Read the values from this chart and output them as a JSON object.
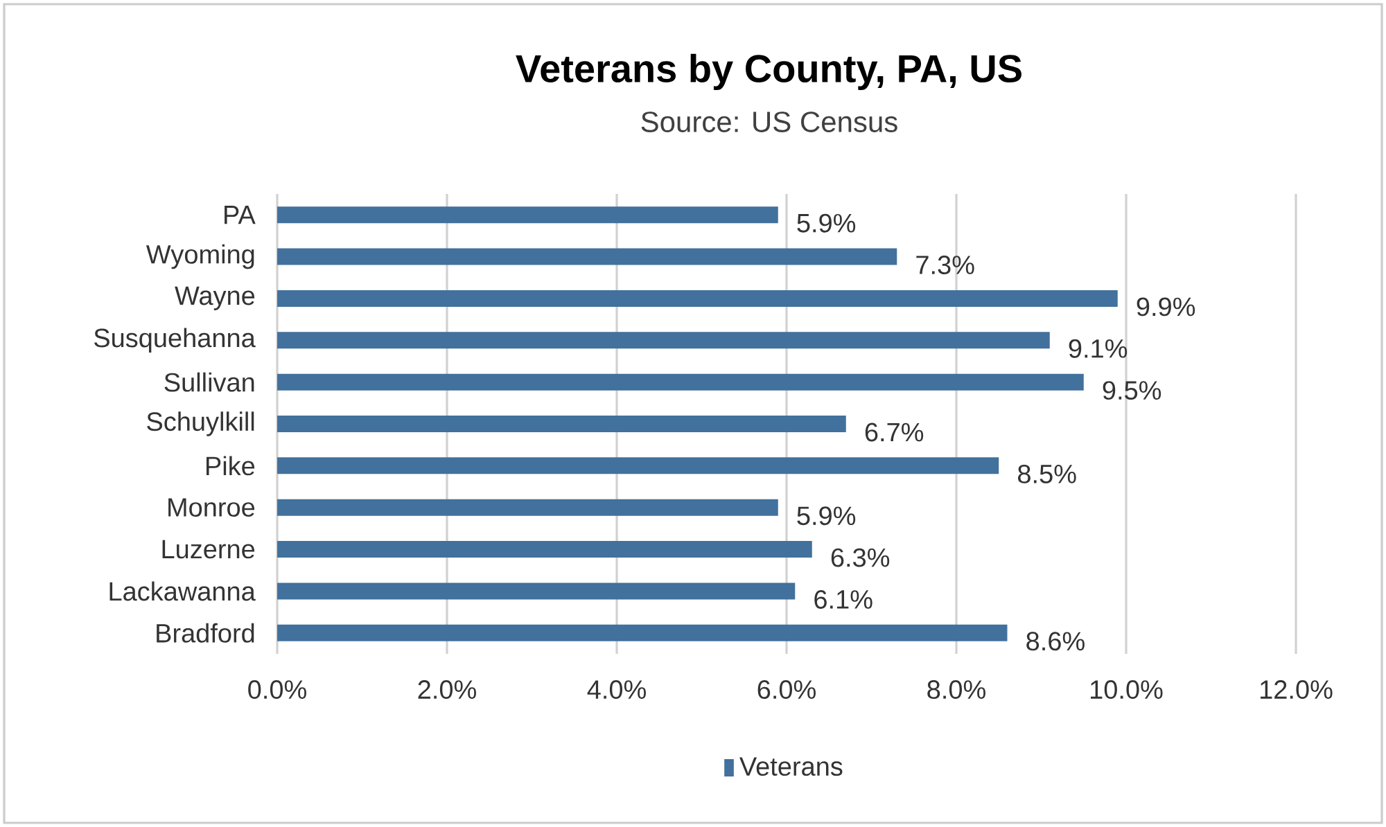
{
  "chart_data": {
    "type": "bar",
    "orientation": "horizontal",
    "title": "Veterans by County, PA, US",
    "subtitle": "Source: US Census",
    "categories": [
      "PA",
      "Wyoming",
      "Wayne",
      "Susquehanna",
      "Sullivan",
      "Schuylkill",
      "Pike",
      "Monroe",
      "Luzerne",
      "Lackawanna",
      "Bradford"
    ],
    "series": [
      {
        "name": "Veterans",
        "color": "#41719c",
        "values": [
          5.9,
          7.3,
          9.9,
          9.1,
          9.5,
          6.7,
          8.5,
          5.9,
          6.3,
          6.1,
          8.6
        ],
        "value_labels": [
          "5.9%",
          "7.3%",
          "9.9%",
          "9.1%",
          "9.5%",
          "6.7%",
          "8.5%",
          "5.9%",
          "6.3%",
          "6.1%",
          "8.6%"
        ]
      }
    ],
    "xlim": [
      0,
      12
    ],
    "xticks": [
      {
        "value": 0,
        "label": "0.0%"
      },
      {
        "value": 2,
        "label": "2.0%"
      },
      {
        "value": 4,
        "label": "4.0%"
      },
      {
        "value": 6,
        "label": "6.0%"
      },
      {
        "value": 8,
        "label": "8.0%"
      },
      {
        "value": 10,
        "label": "10.0%"
      },
      {
        "value": 12,
        "label": "12.0%"
      }
    ],
    "grid": "x",
    "legend": "bottom"
  }
}
